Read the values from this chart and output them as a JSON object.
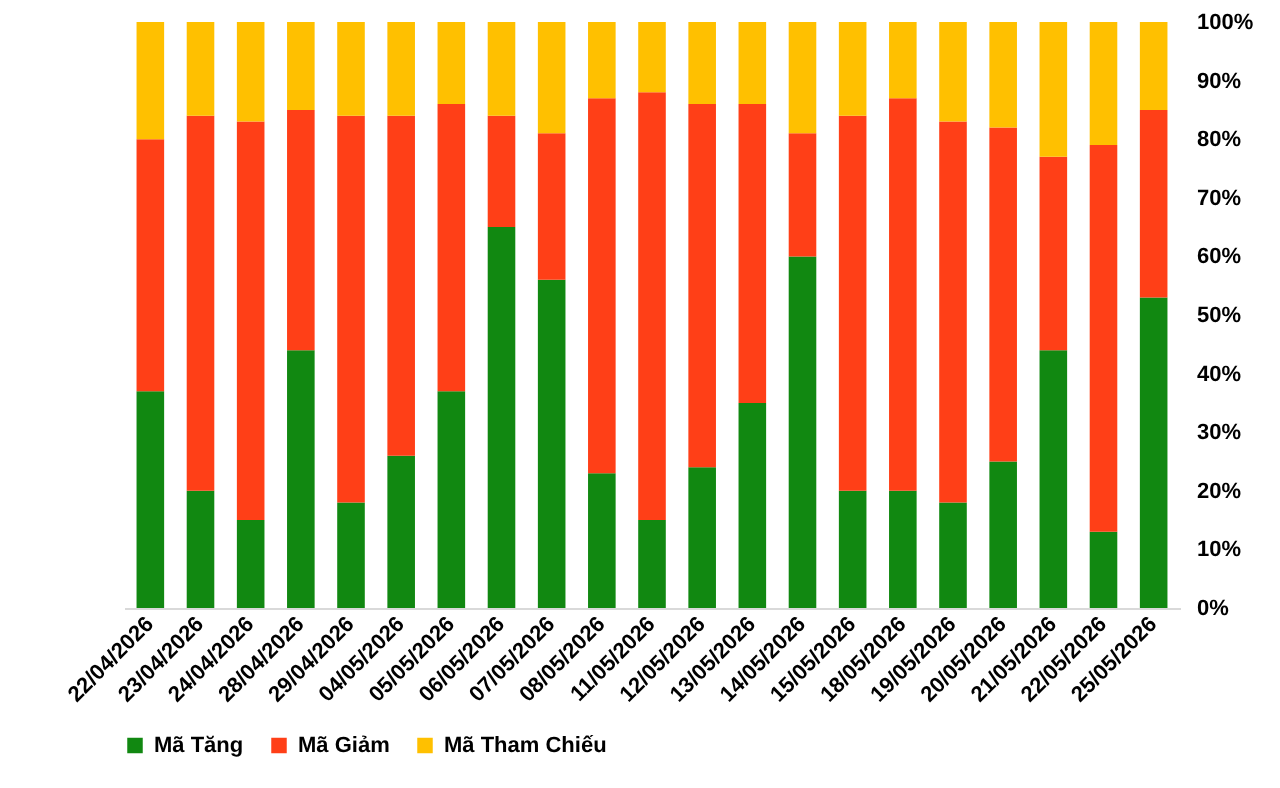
{
  "chart_data": {
    "type": "bar",
    "stacked": true,
    "categories": [
      "22/04/2026",
      "23/04/2026",
      "24/04/2026",
      "28/04/2026",
      "29/04/2026",
      "04/05/2026",
      "05/05/2026",
      "06/05/2026",
      "07/05/2026",
      "08/05/2026",
      "11/05/2026",
      "12/05/2026",
      "13/05/2026",
      "14/05/2026",
      "15/05/2026",
      "18/05/2026",
      "19/05/2026",
      "20/05/2026",
      "21/05/2026",
      "22/05/2026",
      "25/05/2026"
    ],
    "series": [
      {
        "name": "Mã Tăng",
        "color": "#118811",
        "values": [
          37,
          20,
          15,
          44,
          18,
          26,
          37,
          65,
          56,
          23,
          15,
          24,
          35,
          60,
          20,
          20,
          18,
          25,
          44,
          13,
          53
        ]
      },
      {
        "name": "Mã Giảm",
        "color": "#ff3f17",
        "values": [
          43,
          64,
          68,
          41,
          66,
          58,
          49,
          19,
          25,
          64,
          73,
          62,
          51,
          21,
          64,
          67,
          65,
          57,
          33,
          66,
          32
        ]
      },
      {
        "name": "Mã Tham Chiếu",
        "color": "#ffc000",
        "values": [
          20,
          16,
          17,
          15,
          16,
          16,
          14,
          16,
          19,
          13,
          12,
          14,
          14,
          19,
          16,
          13,
          17,
          18,
          23,
          21,
          15
        ]
      }
    ],
    "ylim": [
      0,
      100
    ],
    "yticks": [
      {
        "value": 0,
        "label": "0%"
      },
      {
        "value": 10,
        "label": "10%"
      },
      {
        "value": 20,
        "label": "20%"
      },
      {
        "value": 30,
        "label": "30%"
      },
      {
        "value": 40,
        "label": "40%"
      },
      {
        "value": 50,
        "label": "50%"
      },
      {
        "value": 60,
        "label": "60%"
      },
      {
        "value": 70,
        "label": "70%"
      },
      {
        "value": 80,
        "label": "80%"
      },
      {
        "value": 90,
        "label": "90%"
      },
      {
        "value": 100,
        "label": "100%"
      }
    ],
    "grid": false,
    "legend": "bottom"
  }
}
